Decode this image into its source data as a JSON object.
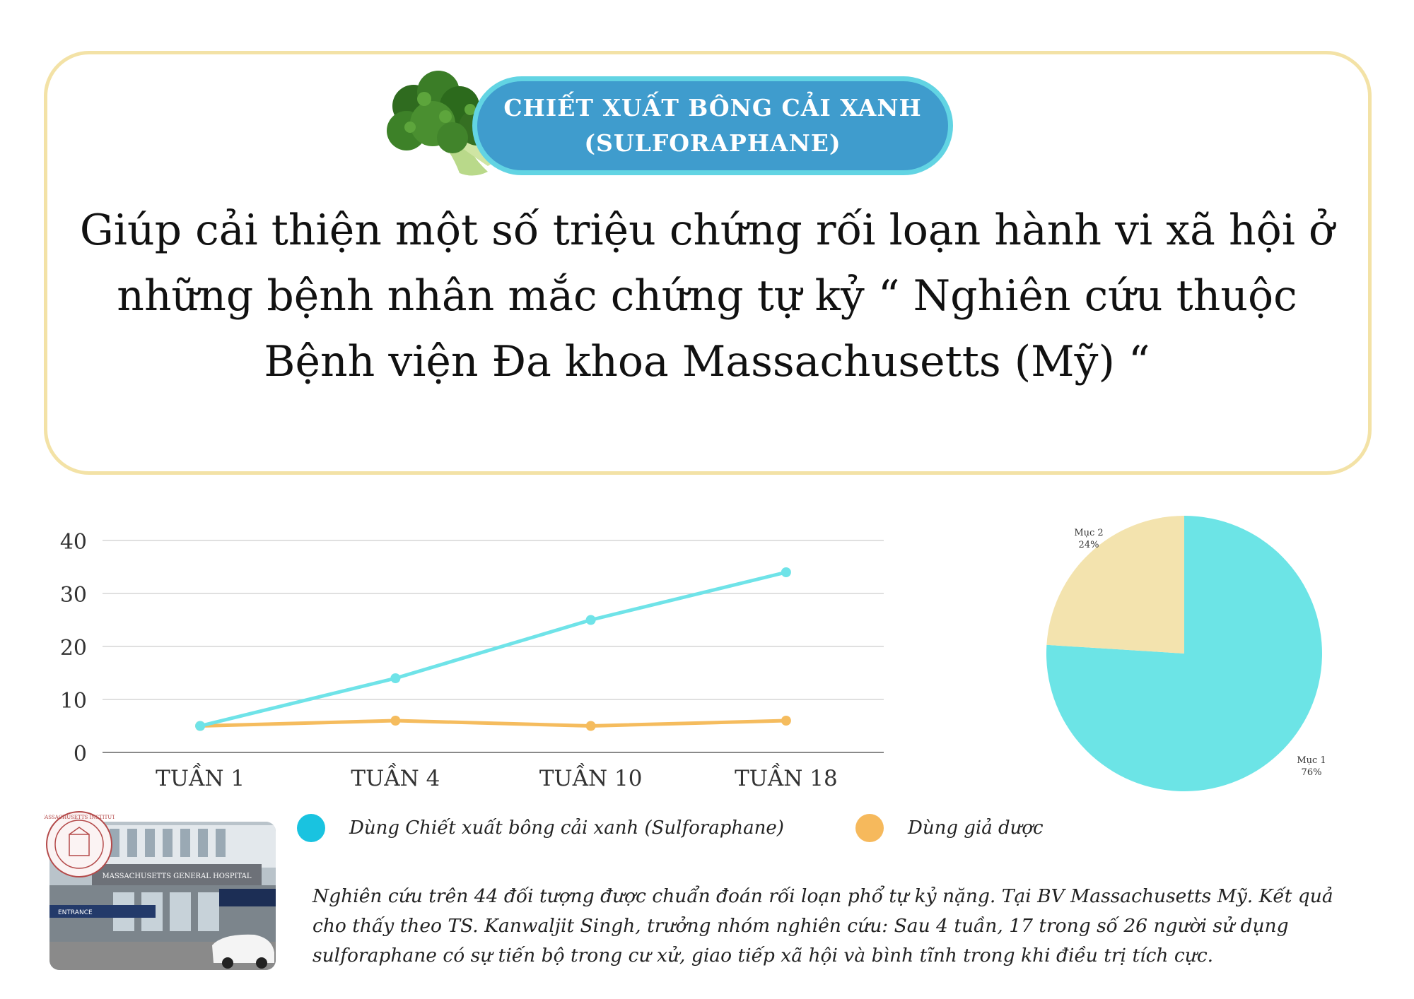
{
  "header": {
    "badge_line1": "CHIẾT XUẤT BÔNG CẢI XANH",
    "badge_line2": "(SULFORAPHANE)",
    "headline_line1": "Giúp cải thiện một số triệu chứng rối loạn hành vi xã hội ở",
    "headline_line2": "những bệnh nhân mắc chứng tự kỷ “ Nghiên cứu thuộc",
    "headline_line3": "Bệnh viện Đa khoa Massachusetts (Mỹ) “"
  },
  "colors": {
    "card_border": "#f3e2a6",
    "badge_fill": "#3f9ccd",
    "badge_border": "#62d4e3",
    "series_sulforaphane": "#6fe3e8",
    "series_placebo": "#f5bc5e",
    "legend_sulforaphane": "#19c3e0",
    "legend_placebo": "#f6b95c",
    "pie_item1": "#6ce4e6",
    "pie_item2": "#f3e3ae"
  },
  "legend": {
    "series1_label": "Dùng Chiết xuất bông cải xanh (Sulforaphane)",
    "series2_label": "Dùng giả dược"
  },
  "chart_data": [
    {
      "type": "line",
      "categories": [
        "TUẦN 1",
        "TUẦN 4",
        "TUẦN 10",
        "TUẦN 18"
      ],
      "series": [
        {
          "name": "Dùng Chiết xuất bông cải xanh (Sulforaphane)",
          "values": [
            5,
            14,
            25,
            34
          ]
        },
        {
          "name": "Dùng giả dược",
          "values": [
            5,
            6,
            5,
            6
          ]
        }
      ],
      "yticks": [
        0,
        10,
        20,
        30,
        40
      ],
      "ylim": [
        0,
        40
      ],
      "grid": true
    },
    {
      "type": "pie",
      "slices": [
        {
          "label": "Mục 1",
          "value": 76,
          "value_label": "76%"
        },
        {
          "label": "Mục 2",
          "value": 24,
          "value_label": "24%"
        }
      ]
    }
  ],
  "photo": {
    "sign_text": "MASSACHUSETTS GENERAL HOSPITAL",
    "entrance_text": "ENTRANCE",
    "seal_text": "MASSACHUSETTS INSTITUTE"
  },
  "note": {
    "text": "Nghiên cứu trên 44 đối tượng được chuẩn đoán rối loạn phổ tự kỷ nặng. Tại BV Massachusetts Mỹ. Kết quả cho thấy theo  TS. Kanwaljit Singh, trưởng nhóm nghiên cứu: Sau 4 tuần, 17 trong số 26 người sử dụng sulforaphane có sự tiến bộ trong cư xử, giao tiếp xã hội và bình tĩnh trong khi điều trị tích cực."
  }
}
